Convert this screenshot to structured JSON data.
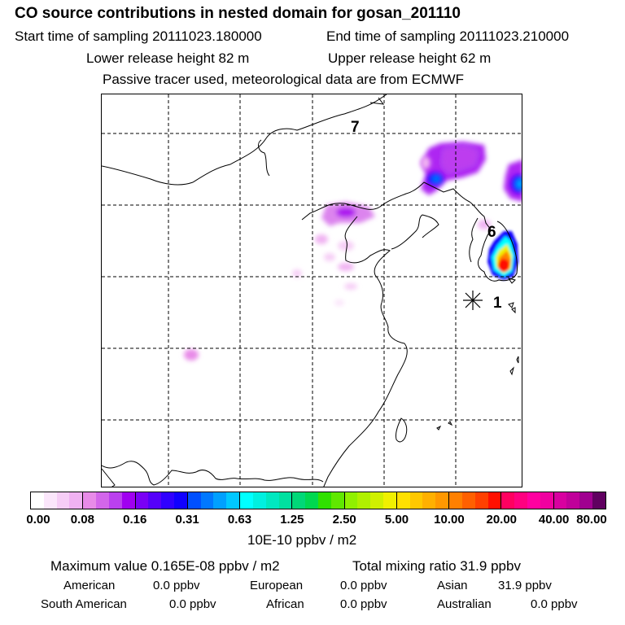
{
  "header": {
    "title": "CO  source contributions in nested domain for gosan_201110",
    "start_time": "Start time of sampling 20111023.180000",
    "end_time": "End time of sampling 20111023.210000",
    "lower_release": "Lower release height   82 m",
    "upper_release": "Upper release height   62 m",
    "tracer_info": "Passive tracer used, meteorological data are from ECMWF"
  },
  "map": {
    "labels": {
      "day7": "7",
      "day6": "6",
      "day1": "1"
    }
  },
  "colorbar": {
    "ticks": [
      "0.00",
      "0.08",
      "0.16",
      "0.31",
      "0.63",
      "1.25",
      "2.50",
      "5.00",
      "10.00",
      "20.00",
      "40.00",
      "80.00"
    ],
    "units": "10E-10 ppbv / m2",
    "colors": [
      [
        "#ffffff",
        "#fbe6fb",
        "#f6cdf6",
        "#f0b2f2"
      ],
      [
        "#e88be8",
        "#d366ea",
        "#bb40ee",
        "#a000f0"
      ],
      [
        "#7a00f5",
        "#5500fa",
        "#3000ff",
        "#1000ff"
      ],
      [
        "#0050ff",
        "#0078ff",
        "#00a0ff",
        "#00c8ff"
      ],
      [
        "#00ffff",
        "#00f0e0",
        "#00e8c0",
        "#00e0a0"
      ],
      [
        "#00d878",
        "#00d850",
        "#30e000",
        "#60e800"
      ],
      [
        "#90f000",
        "#b0f000",
        "#d0f000",
        "#f0f000"
      ],
      [
        "#ffe000",
        "#ffc800",
        "#ffb000",
        "#ff9800"
      ],
      [
        "#ff8000",
        "#ff6000",
        "#ff4000",
        "#ff1000"
      ],
      [
        "#ff0060",
        "#ff0080",
        "#ff00a0",
        "#f000a0"
      ],
      [
        "#d800a0",
        "#c0009a",
        "#a00090",
        "#600060"
      ]
    ]
  },
  "stats": {
    "max_value": "Maximum value  0.165E-08 ppbv / m2",
    "total_mixing": "Total mixing ratio       31.9 ppbv",
    "american_label": "American",
    "american_value": "0.0 ppbv",
    "european_label": "European",
    "european_value": "0.0 ppbv",
    "asian_label": "Asian",
    "asian_value": "31.9 ppbv",
    "south_american_label": "South American",
    "south_american_value": "0.0 ppbv",
    "african_label": "African",
    "african_value": "0.0 ppbv",
    "australian_label": "Australian",
    "australian_value": "0.0 ppbv"
  }
}
